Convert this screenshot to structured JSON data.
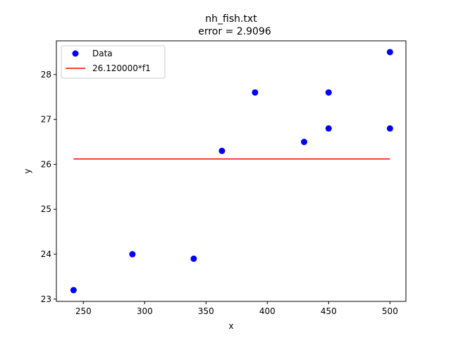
{
  "chart_data": {
    "type": "scatter",
    "title": "nh_fish.txt",
    "subtitle": "error  = 2.9096",
    "xlabel": "x",
    "ylabel": "y",
    "xlim": [
      228,
      513
    ],
    "ylim": [
      22.95,
      28.75
    ],
    "xticks": [
      250,
      300,
      350,
      400,
      450,
      500
    ],
    "yticks": [
      23,
      24,
      25,
      26,
      27,
      28
    ],
    "grid": false,
    "legend_position": "top-left",
    "series": [
      {
        "name": "Data",
        "kind": "scatter",
        "color": "#0000ff",
        "x": [
          242,
          290,
          340,
          363,
          390,
          430,
          450,
          450,
          500,
          500
        ],
        "y": [
          23.2,
          24.0,
          23.9,
          26.3,
          27.6,
          26.5,
          26.8,
          27.6,
          26.8,
          28.5
        ]
      },
      {
        "name": "26.120000*f1",
        "kind": "line",
        "color": "#ff0000",
        "x": [
          242,
          500
        ],
        "y": [
          26.12,
          26.12
        ]
      }
    ]
  }
}
